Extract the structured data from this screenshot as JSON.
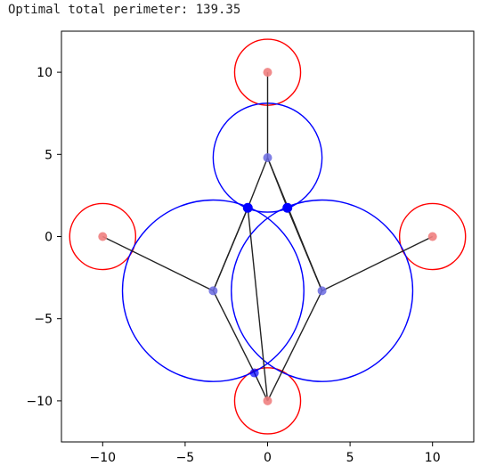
{
  "output": {
    "text": "Optimal total perimeter: 139.35"
  },
  "chart_data": {
    "type": "scatter",
    "xlim": [
      -12.5,
      12.5
    ],
    "ylim": [
      -12.5,
      12.5
    ],
    "xticks": [
      -10,
      -5,
      0,
      5,
      10
    ],
    "yticks": [
      -10,
      -5,
      0,
      5,
      10
    ],
    "xtick_labels": [
      "−10",
      "−5",
      "0",
      "5",
      "10"
    ],
    "ytick_labels": [
      "−10",
      "−5",
      "0",
      "5",
      "10"
    ],
    "grid": false,
    "colors": {
      "fixed": "#ff0000",
      "fixed_point": "#f08080",
      "free": "#0000ff",
      "free_point": "#6a6ae0",
      "tangent_point": "#0000ff",
      "edge": "#222222"
    },
    "fixed_circles": [
      {
        "cx": 0,
        "cy": 10,
        "r": 2
      },
      {
        "cx": -10,
        "cy": 0,
        "r": 2
      },
      {
        "cx": 10,
        "cy": 0,
        "r": 2
      },
      {
        "cx": 0,
        "cy": -10,
        "r": 2
      }
    ],
    "free_circles": [
      {
        "cx": 0,
        "cy": 4.8,
        "r": 3.3
      },
      {
        "cx": -3.3,
        "cy": -3.3,
        "r": 5.5
      },
      {
        "cx": 3.3,
        "cy": -3.3,
        "r": 5.5
      }
    ],
    "tangent_points": [
      {
        "x": -1.2,
        "y": 1.75
      },
      {
        "x": 1.2,
        "y": 1.75
      },
      {
        "x": -0.8,
        "y": -8.3
      }
    ],
    "edges": [
      [
        [
          0,
          10
        ],
        [
          0,
          4.8
        ]
      ],
      [
        [
          0,
          4.8
        ],
        [
          -1.2,
          1.75
        ]
      ],
      [
        [
          -1.2,
          1.75
        ],
        [
          -3.3,
          -3.3
        ]
      ],
      [
        [
          -10,
          0
        ],
        [
          -3.3,
          -3.3
        ]
      ],
      [
        [
          -3.3,
          -3.3
        ],
        [
          -0.8,
          -8.3
        ]
      ],
      [
        [
          -0.8,
          -8.3
        ],
        [
          0,
          -10
        ]
      ],
      [
        [
          0,
          4.8
        ],
        [
          1.2,
          1.75
        ]
      ],
      [
        [
          1.2,
          1.75
        ],
        [
          3.3,
          -3.3
        ]
      ],
      [
        [
          10,
          0
        ],
        [
          3.3,
          -3.3
        ]
      ],
      [
        [
          3.3,
          -3.3
        ],
        [
          0,
          -10
        ]
      ],
      [
        [
          -1.2,
          1.75
        ],
        [
          0,
          -10
        ]
      ],
      [
        [
          1.2,
          1.75
        ],
        [
          3.3,
          -3.3
        ]
      ],
      [
        [
          0,
          4.8
        ],
        [
          3.3,
          -3.3
        ]
      ],
      [
        [
          -3.3,
          -3.3
        ],
        [
          -1.2,
          1.75
        ]
      ]
    ]
  }
}
